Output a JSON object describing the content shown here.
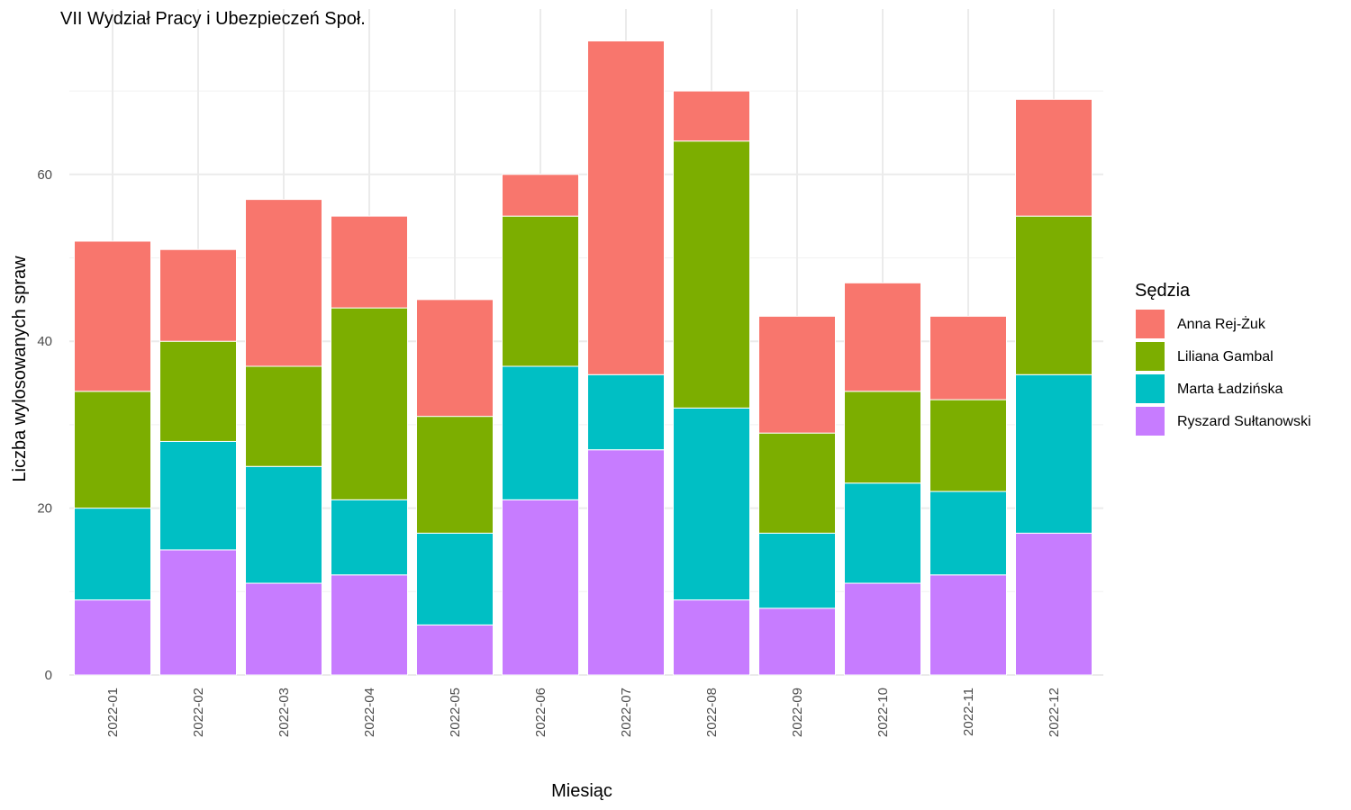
{
  "chart_data": {
    "type": "bar",
    "stacked": true,
    "title": "VII Wydział Pracy i Ubezpieczeń Społ.",
    "xlabel": "Miesiąc",
    "ylabel": "Liczba wylosowanych spraw",
    "ylim": [
      0,
      80
    ],
    "yticks": [
      0,
      20,
      40,
      60
    ],
    "grid": true,
    "legend_title": "Sędzia",
    "legend_position": "right",
    "categories": [
      "2022-01",
      "2022-02",
      "2022-03",
      "2022-04",
      "2022-05",
      "2022-06",
      "2022-07",
      "2022-08",
      "2022-09",
      "2022-10",
      "2022-11",
      "2022-12"
    ],
    "series": [
      {
        "name": "Anna Rej-Żuk",
        "color": "#F8766D",
        "values": [
          18,
          11,
          20,
          11,
          14,
          5,
          40,
          6,
          14,
          13,
          10,
          14
        ]
      },
      {
        "name": "Liliana Gambal",
        "color": "#7CAE00",
        "values": [
          14,
          12,
          12,
          23,
          14,
          18,
          0,
          32,
          12,
          11,
          11,
          19
        ]
      },
      {
        "name": "Marta Ładzińska",
        "color": "#00BFC4",
        "values": [
          11,
          13,
          14,
          9,
          11,
          16,
          9,
          23,
          9,
          12,
          10,
          19
        ]
      },
      {
        "name": "Ryszard Sułtanowski",
        "color": "#C77CFF",
        "values": [
          9,
          15,
          11,
          12,
          6,
          21,
          27,
          9,
          8,
          11,
          12,
          17
        ]
      }
    ]
  }
}
